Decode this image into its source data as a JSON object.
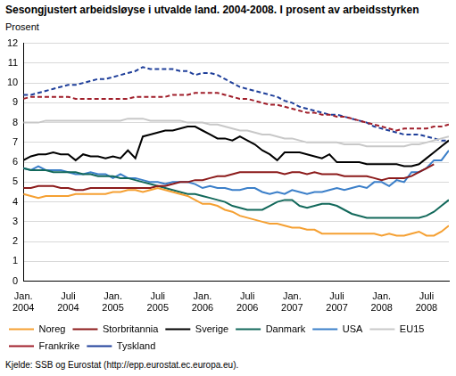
{
  "chart_data": {
    "type": "line",
    "title": "Sesongjustert arbeidsløyse i utvalde land. 2004-2008. I prosent av arbeidsstyrken",
    "y_label": "Prosent",
    "source": "Kjelde: SSB og Eurostat (http://epp.eurostat.ec.europa.eu).",
    "categories": [
      "Jan. 2004",
      null,
      null,
      null,
      null,
      null,
      "Juli 2004",
      null,
      null,
      null,
      null,
      null,
      "Jan. 2005",
      null,
      null,
      null,
      null,
      null,
      "Juli 2005",
      null,
      null,
      null,
      null,
      null,
      "Jan. 2006",
      null,
      null,
      null,
      null,
      null,
      "Juli 2006",
      null,
      null,
      null,
      null,
      null,
      "Jan. 2007",
      null,
      null,
      null,
      null,
      null,
      "Juli 2007",
      null,
      null,
      null,
      null,
      null,
      "Jan. 2008",
      null,
      null,
      null,
      null,
      null,
      "Juli 2008",
      null,
      null,
      null
    ],
    "ylim": [
      0,
      12
    ],
    "yticks": [
      0,
      1,
      2,
      3,
      4,
      5,
      6,
      7,
      8,
      9,
      10,
      11,
      12
    ],
    "grid": true,
    "legend": "bottom",
    "marker": "none",
    "series": [
      {
        "name": "Noreg",
        "color": "#f5a032",
        "line_style": "solid",
        "values": [
          4.4,
          4.3,
          4.2,
          4.3,
          4.3,
          4.3,
          4.3,
          4.4,
          4.4,
          4.4,
          4.4,
          4.4,
          4.5,
          4.5,
          4.6,
          4.6,
          4.5,
          4.6,
          4.7,
          4.6,
          4.5,
          4.4,
          4.3,
          4.1,
          3.9,
          3.9,
          3.8,
          3.6,
          3.5,
          3.3,
          3.2,
          3.1,
          3.0,
          2.9,
          2.9,
          2.8,
          2.7,
          2.7,
          2.6,
          2.6,
          2.4,
          2.4,
          2.4,
          2.4,
          2.4,
          2.4,
          2.4,
          2.4,
          2.3,
          2.4,
          2.3,
          2.3,
          2.4,
          2.5,
          2.3,
          2.3,
          2.5,
          2.8
        ]
      },
      {
        "name": "Storbritannia",
        "color": "#8c1b1b",
        "line_style": "solid",
        "values": [
          4.7,
          4.7,
          4.8,
          4.8,
          4.8,
          4.7,
          4.7,
          4.6,
          4.6,
          4.7,
          4.7,
          4.7,
          4.7,
          4.7,
          4.7,
          4.7,
          4.7,
          4.7,
          4.8,
          4.8,
          4.9,
          5.0,
          5.0,
          5.1,
          5.1,
          5.2,
          5.3,
          5.3,
          5.4,
          5.5,
          5.5,
          5.5,
          5.5,
          5.5,
          5.5,
          5.4,
          5.5,
          5.5,
          5.4,
          5.5,
          5.4,
          5.4,
          5.4,
          5.3,
          5.3,
          5.3,
          5.3,
          5.2,
          5.1,
          5.2,
          5.2,
          5.2,
          5.3,
          5.5,
          5.7,
          5.9,
          null,
          null
        ]
      },
      {
        "name": "Sverige",
        "color": "#000000",
        "line_style": "solid",
        "values": [
          6.1,
          6.3,
          6.4,
          6.4,
          6.5,
          6.4,
          6.4,
          6.1,
          6.4,
          6.3,
          6.3,
          6.2,
          6.3,
          6.2,
          6.6,
          6.2,
          7.3,
          7.4,
          7.5,
          7.6,
          7.6,
          7.7,
          7.8,
          7.8,
          7.6,
          7.4,
          7.2,
          7.2,
          7.1,
          7.3,
          7.1,
          6.9,
          6.6,
          6.4,
          6.1,
          6.5,
          6.5,
          6.5,
          6.4,
          6.3,
          6.2,
          6.4,
          6.0,
          6.0,
          6.0,
          6.0,
          5.9,
          5.9,
          5.9,
          5.9,
          5.9,
          5.8,
          5.8,
          5.9,
          6.2,
          6.5,
          6.8,
          7.1
        ]
      },
      {
        "name": "Danmark",
        "color": "#13695b",
        "line_style": "solid",
        "values": [
          5.7,
          5.6,
          5.6,
          5.6,
          5.5,
          5.5,
          5.5,
          5.5,
          5.4,
          5.4,
          5.3,
          5.3,
          5.3,
          5.2,
          5.2,
          5.1,
          5.0,
          4.9,
          4.8,
          4.7,
          4.6,
          4.5,
          4.4,
          4.4,
          4.3,
          4.2,
          4.1,
          4.0,
          3.8,
          3.7,
          3.6,
          3.6,
          3.6,
          3.8,
          4.0,
          4.1,
          4.1,
          3.8,
          3.7,
          3.8,
          3.9,
          3.9,
          3.8,
          3.6,
          3.4,
          3.3,
          3.2,
          3.2,
          3.2,
          3.2,
          3.2,
          3.2,
          3.2,
          3.2,
          3.3,
          3.5,
          3.8,
          4.1
        ]
      },
      {
        "name": "USA",
        "color": "#3b7fc9",
        "line_style": "solid",
        "values": [
          5.7,
          5.6,
          5.8,
          5.6,
          5.6,
          5.6,
          5.5,
          5.4,
          5.4,
          5.5,
          5.4,
          5.4,
          5.2,
          5.4,
          5.2,
          5.2,
          5.1,
          5.0,
          5.0,
          4.9,
          5.0,
          5.0,
          5.0,
          4.9,
          4.7,
          4.8,
          4.7,
          4.7,
          4.6,
          4.6,
          4.7,
          4.7,
          4.5,
          4.4,
          4.5,
          4.4,
          4.6,
          4.5,
          4.4,
          4.5,
          4.5,
          4.6,
          4.7,
          4.6,
          4.7,
          4.8,
          4.7,
          5.0,
          5.0,
          4.8,
          5.1,
          5.0,
          5.5,
          5.5,
          5.7,
          6.1,
          6.1,
          6.6
        ]
      },
      {
        "name": "EU15",
        "color": "#c8c8c8",
        "line_style": "solid",
        "values": [
          8.0,
          8.0,
          8.0,
          8.1,
          8.1,
          8.1,
          8.1,
          8.1,
          8.1,
          8.1,
          8.1,
          8.1,
          8.1,
          8.1,
          8.2,
          8.2,
          8.2,
          8.1,
          8.1,
          8.1,
          8.1,
          8.1,
          8.0,
          8.0,
          8.0,
          7.9,
          7.9,
          7.8,
          7.7,
          7.6,
          7.6,
          7.5,
          7.4,
          7.4,
          7.3,
          7.2,
          7.2,
          7.1,
          7.0,
          7.0,
          7.0,
          7.0,
          7.0,
          6.9,
          6.9,
          6.9,
          6.8,
          6.8,
          6.8,
          6.8,
          6.8,
          6.8,
          6.9,
          6.9,
          7.0,
          7.1,
          7.2,
          7.3
        ]
      },
      {
        "name": "Frankrike",
        "color": "#a01e2a",
        "line_style": "dashed",
        "values": [
          9.2,
          9.3,
          9.3,
          9.3,
          9.3,
          9.3,
          9.3,
          9.2,
          9.2,
          9.2,
          9.2,
          9.2,
          9.2,
          9.2,
          9.2,
          9.3,
          9.3,
          9.3,
          9.3,
          9.3,
          9.4,
          9.4,
          9.4,
          9.5,
          9.5,
          9.5,
          9.5,
          9.4,
          9.3,
          9.2,
          9.2,
          9.1,
          9.0,
          8.9,
          8.9,
          8.8,
          8.7,
          8.6,
          8.5,
          8.5,
          8.4,
          8.4,
          8.3,
          8.3,
          8.2,
          8.1,
          8.0,
          7.9,
          7.8,
          7.7,
          7.6,
          7.7,
          7.7,
          7.7,
          7.7,
          7.8,
          7.8,
          7.9
        ]
      },
      {
        "name": "Tyskland",
        "color": "#1f3f9a",
        "line_style": "dashed",
        "values": [
          9.4,
          9.4,
          9.5,
          9.6,
          9.7,
          9.8,
          9.9,
          9.9,
          10.0,
          10.1,
          10.2,
          10.2,
          10.3,
          10.4,
          10.5,
          10.6,
          10.8,
          10.7,
          10.7,
          10.7,
          10.7,
          10.6,
          10.6,
          10.4,
          10.5,
          10.5,
          10.4,
          10.2,
          10.0,
          9.8,
          9.7,
          9.6,
          9.5,
          9.4,
          9.3,
          9.1,
          9.0,
          8.8,
          8.7,
          8.6,
          8.5,
          8.4,
          8.4,
          8.3,
          8.2,
          8.1,
          8.0,
          7.8,
          7.7,
          7.6,
          7.5,
          7.4,
          7.4,
          7.4,
          7.3,
          7.2,
          7.1,
          7.1
        ]
      }
    ]
  }
}
